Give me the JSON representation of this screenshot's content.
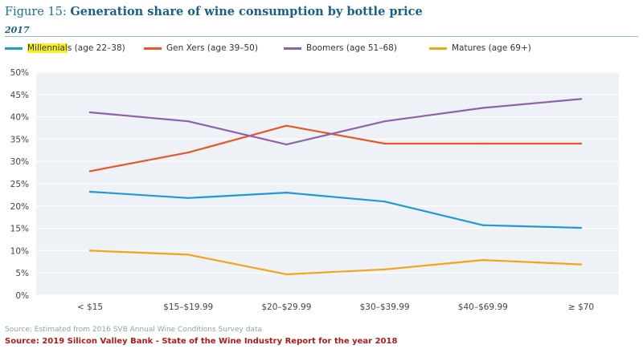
{
  "header": {
    "figure_prefix": "Figure 15:",
    "title": "Generation share of wine consumption by bottle price",
    "subtitle": "2017"
  },
  "footer": {
    "source_note": "Source: Estimated from 2016 SVB Annual Wine Conditions Survey data",
    "source_credit": "Source: 2019 Silicon Valley Bank - State of the Wine Industry Report for the year 2018"
  },
  "legend": {
    "millennials_highlight": "Millennial",
    "millennials_rest": "s (age 22–38)"
  },
  "chart_data": {
    "type": "line",
    "title": "Generation share of wine consumption by bottle price",
    "subtitle": "2017",
    "categories": [
      "< $15",
      "$15–$19.99",
      "$20–$29.99",
      "$30–$39.99",
      "$40–$69.99",
      "≥ $70"
    ],
    "ylim": [
      0,
      50
    ],
    "yticks": [
      "0%",
      "5%",
      "10%",
      "15%",
      "20%",
      "25%",
      "30%",
      "35%",
      "40%",
      "45%",
      "50%"
    ],
    "ytick_values": [
      0,
      5,
      10,
      15,
      20,
      25,
      30,
      35,
      40,
      45,
      50
    ],
    "legend_position": "top",
    "grid": "horizontal",
    "series": [
      {
        "name": "Millennials (age 22–38)",
        "color": "#1e9ad6",
        "values": [
          23.2,
          21.8,
          23,
          21,
          15.7,
          15.1
        ]
      },
      {
        "name": "Gen Xers (age 39–50)",
        "color": "#e8562a",
        "values": [
          27.8,
          32,
          38,
          34,
          34,
          34
        ]
      },
      {
        "name": "Boomers (age 51–68)",
        "color": "#8c62a8",
        "values": [
          41,
          39,
          33.8,
          39,
          42,
          44
        ]
      },
      {
        "name": "Matures (age 69+)",
        "color": "#f5a31a",
        "values": [
          10,
          9.1,
          4.7,
          5.8,
          7.9,
          6.9
        ]
      }
    ]
  }
}
